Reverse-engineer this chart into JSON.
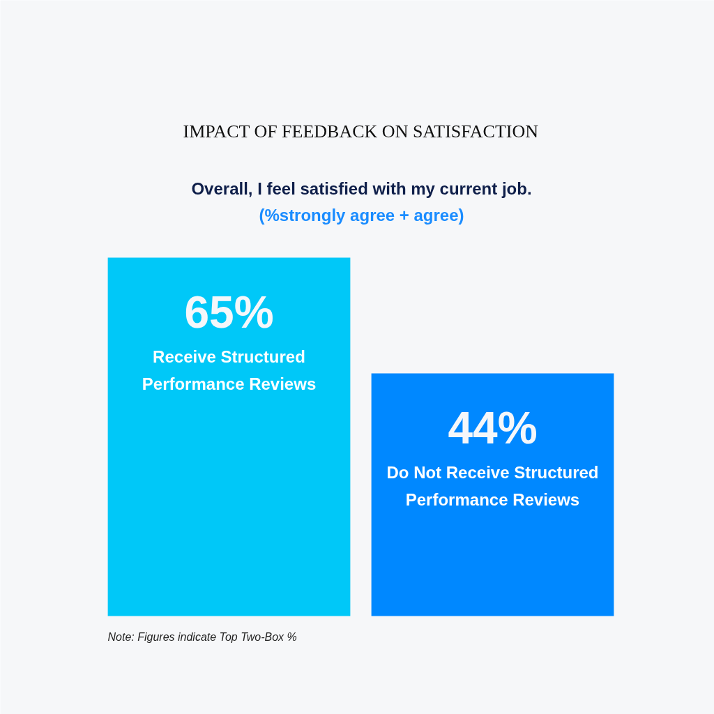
{
  "chart_data": {
    "type": "bar",
    "title": "IMPACT OF FEEDBACK ON SATISFACTION",
    "subtitle": "Overall, I feel satisfied with my current job.\n(%strongly agree + agree)",
    "categories": [
      "Receive Structured Performance Reviews",
      "Do Not Receive Structured Performance Reviews"
    ],
    "values": [
      65,
      44
    ],
    "colors": [
      "#00c8f8",
      "#0088ff"
    ],
    "value_labels": [
      "65%",
      "44%"
    ],
    "annotations": [
      "Note: Figures indicate Top Two-Box %"
    ]
  }
}
